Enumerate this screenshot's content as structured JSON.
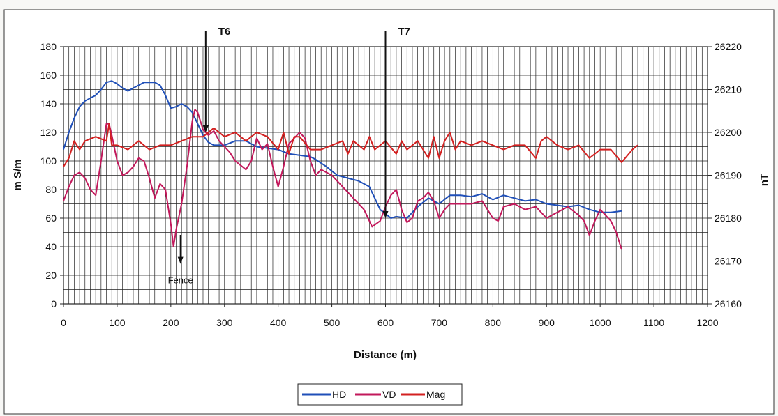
{
  "chart_data": {
    "type": "line",
    "title": "",
    "xlabel": "Distance (m)",
    "ylabel": "m S/m",
    "y2label": "nT",
    "xlim": [
      0,
      1200
    ],
    "ylim": [
      0,
      180
    ],
    "y2lim": [
      26160,
      26220
    ],
    "xticks": [
      0,
      100,
      200,
      300,
      400,
      500,
      600,
      700,
      800,
      900,
      1000,
      1100,
      1200
    ],
    "yticks": [
      0,
      20,
      40,
      60,
      80,
      100,
      120,
      140,
      160,
      180
    ],
    "y2ticks": [
      26160,
      26170,
      26180,
      26190,
      26200,
      26210,
      26220
    ],
    "grid": true,
    "legend_position": "bottom-center",
    "series": [
      {
        "name": "HD",
        "axis": "left",
        "color": "#1f4fb8",
        "points": [
          [
            0,
            108
          ],
          [
            10,
            120
          ],
          [
            20,
            130
          ],
          [
            30,
            138
          ],
          [
            40,
            142
          ],
          [
            50,
            144
          ],
          [
            60,
            146
          ],
          [
            70,
            150
          ],
          [
            80,
            155
          ],
          [
            90,
            156
          ],
          [
            100,
            154
          ],
          [
            110,
            151
          ],
          [
            120,
            149
          ],
          [
            130,
            151
          ],
          [
            140,
            153
          ],
          [
            150,
            155
          ],
          [
            160,
            155
          ],
          [
            170,
            155
          ],
          [
            180,
            153
          ],
          [
            190,
            146
          ],
          [
            200,
            137
          ],
          [
            210,
            138
          ],
          [
            220,
            140
          ],
          [
            230,
            138
          ],
          [
            240,
            134
          ],
          [
            250,
            126
          ],
          [
            260,
            118
          ],
          [
            270,
            113
          ],
          [
            280,
            111
          ],
          [
            300,
            111
          ],
          [
            320,
            114
          ],
          [
            340,
            114
          ],
          [
            360,
            110
          ],
          [
            380,
            109
          ],
          [
            400,
            108
          ],
          [
            420,
            105
          ],
          [
            440,
            104
          ],
          [
            460,
            103
          ],
          [
            470,
            101
          ],
          [
            490,
            96
          ],
          [
            510,
            90
          ],
          [
            530,
            88
          ],
          [
            550,
            86
          ],
          [
            570,
            82
          ],
          [
            580,
            74
          ],
          [
            590,
            66
          ],
          [
            600,
            63
          ],
          [
            610,
            60
          ],
          [
            620,
            61
          ],
          [
            640,
            60
          ],
          [
            660,
            68
          ],
          [
            680,
            74
          ],
          [
            700,
            70
          ],
          [
            720,
            76
          ],
          [
            740,
            76
          ],
          [
            760,
            75
          ],
          [
            780,
            77
          ],
          [
            800,
            73
          ],
          [
            820,
            76
          ],
          [
            840,
            74
          ],
          [
            860,
            72
          ],
          [
            880,
            73
          ],
          [
            900,
            70
          ],
          [
            920,
            69
          ],
          [
            940,
            68
          ],
          [
            960,
            69
          ],
          [
            980,
            66
          ],
          [
            1000,
            64
          ],
          [
            1020,
            64
          ],
          [
            1040,
            65
          ]
        ]
      },
      {
        "name": "VD",
        "axis": "left",
        "color": "#c2185b",
        "points": [
          [
            0,
            72
          ],
          [
            10,
            82
          ],
          [
            20,
            90
          ],
          [
            30,
            92
          ],
          [
            40,
            88
          ],
          [
            50,
            80
          ],
          [
            60,
            76
          ],
          [
            70,
            100
          ],
          [
            80,
            126
          ],
          [
            85,
            126
          ],
          [
            90,
            118
          ],
          [
            100,
            100
          ],
          [
            110,
            90
          ],
          [
            120,
            92
          ],
          [
            130,
            96
          ],
          [
            140,
            102
          ],
          [
            150,
            100
          ],
          [
            160,
            88
          ],
          [
            170,
            74
          ],
          [
            180,
            84
          ],
          [
            190,
            80
          ],
          [
            200,
            56
          ],
          [
            205,
            40
          ],
          [
            210,
            52
          ],
          [
            220,
            70
          ],
          [
            230,
            96
          ],
          [
            240,
            128
          ],
          [
            245,
            136
          ],
          [
            250,
            134
          ],
          [
            260,
            122
          ],
          [
            270,
            118
          ],
          [
            280,
            121
          ],
          [
            290,
            114
          ],
          [
            300,
            110
          ],
          [
            310,
            106
          ],
          [
            320,
            100
          ],
          [
            340,
            94
          ],
          [
            350,
            100
          ],
          [
            360,
            116
          ],
          [
            370,
            108
          ],
          [
            380,
            112
          ],
          [
            390,
            96
          ],
          [
            400,
            82
          ],
          [
            410,
            96
          ],
          [
            420,
            112
          ],
          [
            430,
            116
          ],
          [
            440,
            120
          ],
          [
            450,
            116
          ],
          [
            460,
            100
          ],
          [
            470,
            90
          ],
          [
            480,
            94
          ],
          [
            500,
            90
          ],
          [
            520,
            82
          ],
          [
            540,
            74
          ],
          [
            560,
            66
          ],
          [
            575,
            54
          ],
          [
            590,
            58
          ],
          [
            600,
            68
          ],
          [
            610,
            76
          ],
          [
            620,
            80
          ],
          [
            630,
            66
          ],
          [
            640,
            57
          ],
          [
            650,
            60
          ],
          [
            660,
            72
          ],
          [
            670,
            74
          ],
          [
            680,
            78
          ],
          [
            690,
            72
          ],
          [
            700,
            60
          ],
          [
            710,
            66
          ],
          [
            720,
            70
          ],
          [
            740,
            70
          ],
          [
            760,
            70
          ],
          [
            780,
            72
          ],
          [
            800,
            60
          ],
          [
            810,
            58
          ],
          [
            820,
            68
          ],
          [
            840,
            70
          ],
          [
            860,
            66
          ],
          [
            880,
            68
          ],
          [
            900,
            60
          ],
          [
            920,
            64
          ],
          [
            940,
            68
          ],
          [
            960,
            62
          ],
          [
            970,
            58
          ],
          [
            980,
            48
          ],
          [
            990,
            58
          ],
          [
            1000,
            66
          ],
          [
            1010,
            62
          ],
          [
            1020,
            58
          ],
          [
            1030,
            50
          ],
          [
            1040,
            38
          ]
        ]
      },
      {
        "name": "Mag",
        "axis": "right",
        "color": "#d32020",
        "points": [
          [
            0,
            26192
          ],
          [
            10,
            26194
          ],
          [
            20,
            26198
          ],
          [
            30,
            26196
          ],
          [
            40,
            26198
          ],
          [
            60,
            26199
          ],
          [
            80,
            26198
          ],
          [
            85,
            26202
          ],
          [
            90,
            26197
          ],
          [
            100,
            26197
          ],
          [
            120,
            26196
          ],
          [
            140,
            26198
          ],
          [
            160,
            26196
          ],
          [
            180,
            26197
          ],
          [
            200,
            26197
          ],
          [
            220,
            26198
          ],
          [
            240,
            26199
          ],
          [
            260,
            26199
          ],
          [
            280,
            26201
          ],
          [
            300,
            26199
          ],
          [
            320,
            26200
          ],
          [
            340,
            26198
          ],
          [
            360,
            26200
          ],
          [
            380,
            26199
          ],
          [
            400,
            26196
          ],
          [
            410,
            26200
          ],
          [
            420,
            26195
          ],
          [
            430,
            26199
          ],
          [
            440,
            26199
          ],
          [
            460,
            26196
          ],
          [
            480,
            26196
          ],
          [
            500,
            26197
          ],
          [
            520,
            26198
          ],
          [
            530,
            26195
          ],
          [
            540,
            26198
          ],
          [
            560,
            26196
          ],
          [
            570,
            26199
          ],
          [
            580,
            26196
          ],
          [
            600,
            26198
          ],
          [
            620,
            26195
          ],
          [
            630,
            26198
          ],
          [
            640,
            26196
          ],
          [
            660,
            26198
          ],
          [
            680,
            26194
          ],
          [
            690,
            26199
          ],
          [
            700,
            26194
          ],
          [
            710,
            26198
          ],
          [
            720,
            26200
          ],
          [
            730,
            26196
          ],
          [
            740,
            26198
          ],
          [
            760,
            26197
          ],
          [
            780,
            26198
          ],
          [
            800,
            26197
          ],
          [
            820,
            26196
          ],
          [
            840,
            26197
          ],
          [
            860,
            26197
          ],
          [
            880,
            26194
          ],
          [
            890,
            26198
          ],
          [
            900,
            26199
          ],
          [
            920,
            26197
          ],
          [
            940,
            26196
          ],
          [
            960,
            26197
          ],
          [
            980,
            26194
          ],
          [
            1000,
            26196
          ],
          [
            1020,
            26196
          ],
          [
            1040,
            26193
          ],
          [
            1060,
            26196
          ],
          [
            1070,
            26197
          ]
        ]
      }
    ],
    "annotations": [
      {
        "label": "T6",
        "x": 265,
        "y": 120
      },
      {
        "label": "T7",
        "x": 600,
        "y": 60
      },
      {
        "label": "Fence",
        "x": 218,
        "y": 28
      }
    ]
  }
}
